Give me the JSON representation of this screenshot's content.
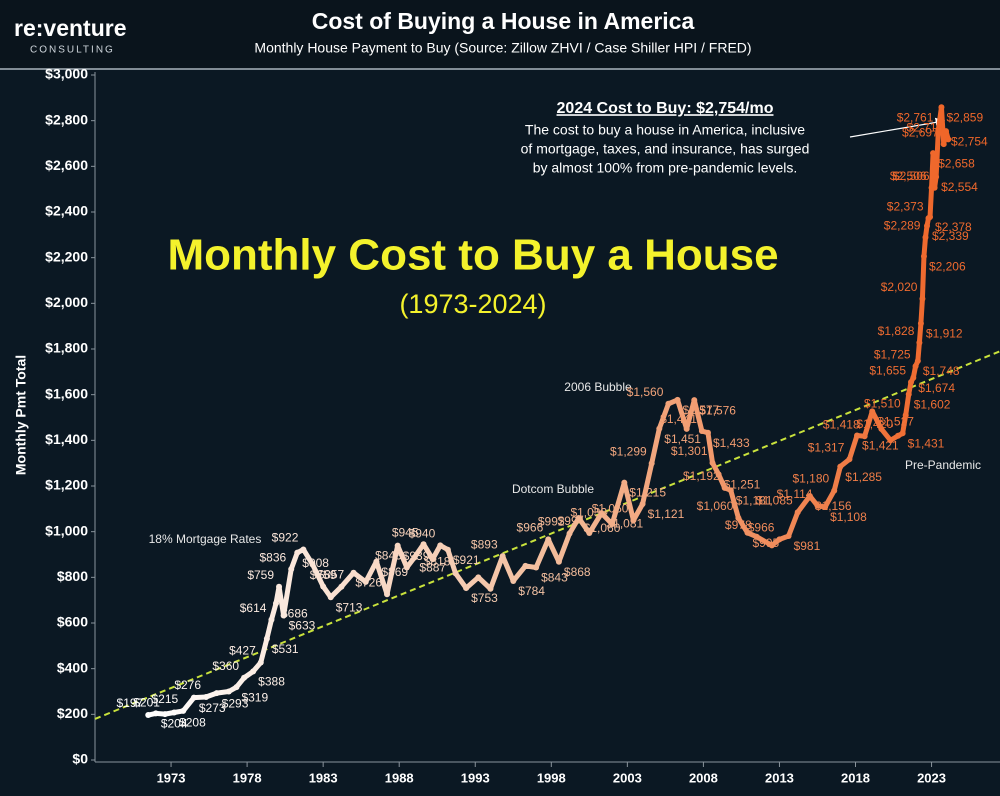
{
  "header": {
    "logo": "re:venture",
    "logo_sub": "CONSULTING"
  },
  "chart_data": {
    "type": "line",
    "title": "Cost of Buying a House in America",
    "subtitle": "Monthly House Payment to Buy (Source: Zillow ZHVI / Case Shiller HPI / FRED)",
    "headline": "Monthly Cost to Buy a House",
    "headline_sub": "(1973-2024)",
    "ylabel": "Monthly Pmt Total",
    "callout": {
      "title": "2024 Cost to Buy: $2,754/mo",
      "lines": [
        "The cost to buy a house in America, inclusive",
        "of mortgage, taxes, and insurance, has surged",
        "by almost 100% from pre-pandemic levels."
      ]
    },
    "annotations": [
      "18% Mortgage Rates",
      "Dotcom Bubble",
      "2006 Bubble",
      "Pre-Pandemic"
    ],
    "xlim": [
      1968,
      2027.5
    ],
    "xticks": [
      1973,
      1978,
      1983,
      1988,
      1993,
      1998,
      2003,
      2008,
      2013,
      2018,
      2023
    ],
    "ylim": [
      0,
      3000
    ],
    "yticks": [
      {
        "value": 0,
        "label": "$0"
      },
      {
        "value": 200,
        "label": "$200"
      },
      {
        "value": 400,
        "label": "$400"
      },
      {
        "value": 600,
        "label": "$600"
      },
      {
        "value": 800,
        "label": "$800"
      },
      {
        "value": 1000,
        "label": "$1,000"
      },
      {
        "value": 1200,
        "label": "$1,200"
      },
      {
        "value": 1400,
        "label": "$1,400"
      },
      {
        "value": 1600,
        "label": "$1,600"
      },
      {
        "value": 1800,
        "label": "$1,800"
      },
      {
        "value": 2000,
        "label": "$2,000"
      },
      {
        "value": 2200,
        "label": "$2,200"
      },
      {
        "value": 2400,
        "label": "$2,400"
      },
      {
        "value": 2600,
        "label": "$2,600"
      },
      {
        "value": 2800,
        "label": "$2,800"
      },
      {
        "value": 3000,
        "label": "$3,000"
      }
    ],
    "grid": false,
    "line_gradient": [
      "#ffffff",
      "#f3bd9c",
      "#ef6528"
    ],
    "trendline": {
      "color": "#c9e23c",
      "x": [
        1968,
        2027.5
      ],
      "values": [
        180,
        1790
      ]
    },
    "x": [
      1971.5,
      1972.0,
      1972.6,
      1973.2,
      1973.8,
      1974.5,
      1975.3,
      1976.0,
      1976.8,
      1977.3,
      1977.8,
      1978.4,
      1978.9,
      1979.3,
      1979.6,
      1979.9,
      1980.1,
      1980.4,
      1980.9,
      1981.3,
      1981.7,
      1982.3,
      1983.0,
      1983.5,
      1984.2,
      1985.0,
      1985.8,
      1986.5,
      1987.2,
      1987.9,
      1988.5,
      1989.0,
      1989.6,
      1990.2,
      1990.7,
      1991.2,
      1991.7,
      1992.4,
      1993.2,
      1994.0,
      1994.8,
      1995.5,
      1996.3,
      1997.0,
      1997.8,
      1998.5,
      1999.2,
      1999.8,
      2000.5,
      2001.3,
      2002.0,
      2002.8,
      2003.4,
      2004.0,
      2004.6,
      2005.1,
      2005.7,
      2006.3,
      2006.9,
      2007.4,
      2007.9,
      2008.3,
      2008.6,
      2009.0,
      2009.4,
      2009.8,
      2010.3,
      2010.9,
      2011.5,
      2012.5,
      2013.0,
      2013.6,
      2014.2,
      2015.0,
      2015.5,
      2016.0,
      2016.6,
      2017.0,
      2017.6,
      2018.1,
      2018.6,
      2019.1,
      2019.7,
      2020.3,
      2020.8,
      2021.1,
      2021.3,
      2021.5,
      2021.65,
      2021.8,
      2021.95,
      2022.1,
      2022.2,
      2022.3,
      2022.4,
      2022.5,
      2022.6,
      2022.7,
      2022.8,
      2022.9,
      2023.0,
      2023.1,
      2023.2,
      2023.3,
      2023.45,
      2023.65,
      2023.8,
      2023.95,
      2024.1
    ],
    "values": [
      197,
      204,
      201,
      208,
      215,
      273,
      276,
      293,
      300,
      319,
      360,
      388,
      427,
      531,
      614,
      686,
      759,
      633,
      836,
      908,
      922,
      857,
      760,
      713,
      759,
      820,
      780,
      869,
      726,
      939,
      843,
      887,
      945,
      880,
      940,
      921,
      818,
      753,
      800,
      750,
      893,
      784,
      850,
      843,
      966,
      868,
      992,
      1060,
      994,
      1081,
      1033,
      1215,
      1050,
      1121,
      1299,
      1451,
      1560,
      1577,
      1450,
      1576,
      1441,
      1433,
      1301,
      1251,
      1192,
      1181,
      1060,
      995,
      978,
      940,
      966,
      981,
      1085,
      1156,
      1114,
      1108,
      1180,
      1285,
      1317,
      1421,
      1418,
      1527,
      1450,
      1400,
      1420,
      1431,
      1510,
      1602,
      1655,
      1674,
      1725,
      1748,
      1828,
      1912,
      2020,
      2206,
      2289,
      2339,
      2373,
      2378,
      2506,
      2658,
      2506,
      2554,
      2761,
      2859,
      2697,
      2754,
      2718
    ],
    "value_labels": [
      "$197",
      "$204",
      "$201",
      "$208",
      "$215",
      "$273",
      "$276",
      "$293",
      null,
      "$319",
      "$360",
      "$388",
      "$427",
      "$531",
      "$614",
      "$686",
      "$759",
      "$633",
      "$836",
      "$908",
      "$922",
      "$857",
      null,
      "$713",
      "$759",
      null,
      null,
      "$869",
      "$726",
      "$939",
      "$843",
      "$887",
      "$945",
      null,
      "$940",
      "$921",
      "$818",
      "$753",
      null,
      null,
      "$893",
      "$784",
      null,
      "$843",
      "$966",
      "$868",
      "$992",
      "$1,060",
      "$994",
      "$1,081",
      "$1,033",
      "$1,215",
      "$1,050",
      "$1,121",
      "$1,299",
      "$1,451",
      "$1,560",
      "$1,577",
      null,
      "$1,576",
      "$1,441",
      "$1,433",
      "$1,301",
      "$1,251",
      "$1,192",
      "$1,181",
      "$1,060",
      "$995",
      "$978",
      null,
      "$966",
      "$981",
      "$1,085",
      "$1,156",
      "$1,114",
      "$1,108",
      "$1,180",
      "$1,285",
      "$1,317",
      "$1,421",
      "$1,418",
      "$1,527",
      null,
      null,
      "$1,420",
      "$1,431",
      "$1,510",
      "$1,602",
      "$1,655",
      "$1,674",
      "$1,725",
      "$1,748",
      "$1,828",
      "$1,912",
      "$2,020",
      "$2,206",
      "$2,289",
      "$2,339",
      "$2,373",
      "$2,378",
      "$2,506",
      "$2,658",
      "$2,506",
      "$2,554",
      "$2,761",
      "$2,859",
      "$2,697",
      "$2,754",
      "$2,718"
    ]
  }
}
